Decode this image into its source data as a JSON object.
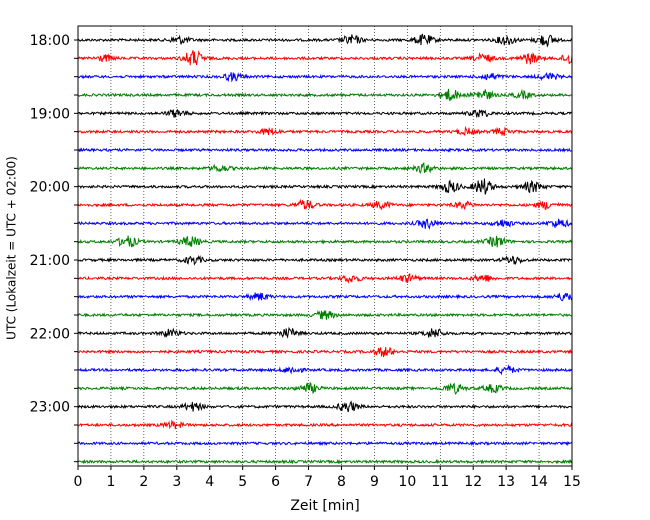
{
  "chart_data": {
    "type": "line",
    "subtype": "helicorder",
    "xlabel": "Zeit  [min]",
    "ylabel": "UTC (Lokalzeit = UTC + 02:00)",
    "xlim": [
      0,
      15
    ],
    "x_ticks": [
      0,
      1,
      2,
      3,
      4,
      5,
      6,
      7,
      8,
      9,
      10,
      11,
      12,
      13,
      14,
      15
    ],
    "y_tick_labels": [
      "18:00",
      "19:00",
      "20:00",
      "21:00",
      "22:00",
      "23:00"
    ],
    "trace_minutes": 15,
    "grid": "vertical-dotted",
    "legend": "none",
    "color_cycle": [
      "#000000",
      "#ff0000",
      "#0000ff",
      "#008000"
    ],
    "series": [
      {
        "start": "18:00",
        "bursts": [
          {
            "x": 3.1,
            "amp": 0.35
          },
          {
            "x": 8.3,
            "amp": 0.45
          },
          {
            "x": 10.5,
            "amp": 0.5
          },
          {
            "x": 13.0,
            "amp": 0.45
          },
          {
            "x": 14.2,
            "amp": 0.55
          }
        ]
      },
      {
        "start": "18:15",
        "bursts": [
          {
            "x": 3.5,
            "amp": 0.75
          },
          {
            "x": 0.8,
            "amp": 0.3
          },
          {
            "x": 12.3,
            "amp": 0.4
          },
          {
            "x": 13.7,
            "amp": 0.5
          },
          {
            "x": 15.0,
            "amp": 0.6
          }
        ]
      },
      {
        "start": "18:30",
        "bursts": [
          {
            "x": 4.7,
            "amp": 0.35
          },
          {
            "x": 12.5,
            "amp": 0.3
          },
          {
            "x": 14.3,
            "amp": 0.3
          }
        ]
      },
      {
        "start": "18:45",
        "bursts": [
          {
            "x": 11.3,
            "amp": 0.55
          },
          {
            "x": 12.3,
            "amp": 0.5
          },
          {
            "x": 13.5,
            "amp": 0.3
          }
        ]
      },
      {
        "start": "19:00",
        "bursts": [
          {
            "x": 3.0,
            "amp": 0.35
          },
          {
            "x": 12.2,
            "amp": 0.35
          }
        ]
      },
      {
        "start": "19:15",
        "bursts": [
          {
            "x": 5.8,
            "amp": 0.3
          },
          {
            "x": 11.8,
            "amp": 0.3
          },
          {
            "x": 12.9,
            "amp": 0.3
          }
        ]
      },
      {
        "start": "19:30",
        "bursts": []
      },
      {
        "start": "19:45",
        "bursts": [
          {
            "x": 4.3,
            "amp": 0.3
          },
          {
            "x": 10.5,
            "amp": 0.4
          }
        ]
      },
      {
        "start": "20:00",
        "bursts": [
          {
            "x": 11.3,
            "amp": 0.55
          },
          {
            "x": 12.3,
            "amp": 0.75
          },
          {
            "x": 13.8,
            "amp": 0.5
          }
        ]
      },
      {
        "start": "20:15",
        "bursts": [
          {
            "x": 6.9,
            "amp": 0.45
          },
          {
            "x": 9.2,
            "amp": 0.35
          },
          {
            "x": 11.7,
            "amp": 0.3
          },
          {
            "x": 14.2,
            "amp": 0.35
          }
        ]
      },
      {
        "start": "20:30",
        "bursts": [
          {
            "x": 10.6,
            "amp": 0.45
          },
          {
            "x": 12.9,
            "amp": 0.35
          },
          {
            "x": 14.6,
            "amp": 0.4
          }
        ]
      },
      {
        "start": "20:45",
        "bursts": [
          {
            "x": 1.5,
            "amp": 0.55
          },
          {
            "x": 3.4,
            "amp": 0.5
          },
          {
            "x": 12.7,
            "amp": 0.5
          }
        ]
      },
      {
        "start": "21:00",
        "bursts": [
          {
            "x": 3.5,
            "amp": 0.35
          },
          {
            "x": 13.2,
            "amp": 0.35
          }
        ]
      },
      {
        "start": "21:15",
        "bursts": [
          {
            "x": 8.3,
            "amp": 0.35
          },
          {
            "x": 10.0,
            "amp": 0.35
          },
          {
            "x": 12.3,
            "amp": 0.35
          }
        ]
      },
      {
        "start": "21:30",
        "bursts": [
          {
            "x": 5.5,
            "amp": 0.35
          },
          {
            "x": 14.8,
            "amp": 0.4
          }
        ]
      },
      {
        "start": "21:45",
        "bursts": [
          {
            "x": 7.5,
            "amp": 0.4
          }
        ]
      },
      {
        "start": "22:00",
        "bursts": [
          {
            "x": 2.8,
            "amp": 0.35
          },
          {
            "x": 6.4,
            "amp": 0.45
          },
          {
            "x": 10.8,
            "amp": 0.45
          }
        ]
      },
      {
        "start": "22:15",
        "bursts": [
          {
            "x": 9.3,
            "amp": 0.45
          }
        ]
      },
      {
        "start": "22:30",
        "bursts": [
          {
            "x": 6.5,
            "amp": 0.3
          },
          {
            "x": 13.0,
            "amp": 0.35
          }
        ]
      },
      {
        "start": "22:45",
        "bursts": [
          {
            "x": 7.0,
            "amp": 0.45
          },
          {
            "x": 11.4,
            "amp": 0.45
          },
          {
            "x": 12.6,
            "amp": 0.35
          }
        ]
      },
      {
        "start": "23:00",
        "bursts": [
          {
            "x": 3.5,
            "amp": 0.4
          },
          {
            "x": 8.2,
            "amp": 0.5
          }
        ]
      },
      {
        "start": "23:15",
        "bursts": [
          {
            "x": 2.9,
            "amp": 0.3
          }
        ]
      },
      {
        "start": "23:30",
        "bursts": []
      },
      {
        "start": "23:45",
        "bursts": []
      }
    ]
  }
}
